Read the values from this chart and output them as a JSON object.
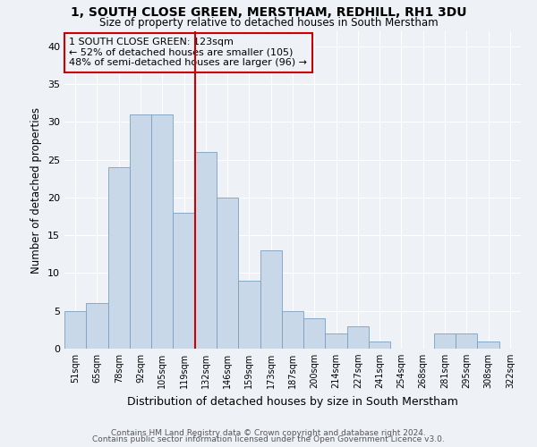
{
  "title1": "1, SOUTH CLOSE GREEN, MERSTHAM, REDHILL, RH1 3DU",
  "title2": "Size of property relative to detached houses in South Merstham",
  "xlabel": "Distribution of detached houses by size in South Merstham",
  "ylabel": "Number of detached properties",
  "categories": [
    "51sqm",
    "65sqm",
    "78sqm",
    "92sqm",
    "105sqm",
    "119sqm",
    "132sqm",
    "146sqm",
    "159sqm",
    "173sqm",
    "187sqm",
    "200sqm",
    "214sqm",
    "227sqm",
    "241sqm",
    "254sqm",
    "268sqm",
    "281sqm",
    "295sqm",
    "308sqm",
    "322sqm"
  ],
  "values": [
    5,
    6,
    24,
    31,
    31,
    18,
    26,
    20,
    9,
    13,
    5,
    4,
    2,
    3,
    1,
    0,
    0,
    2,
    2,
    1,
    0
  ],
  "bar_color": "#c8d8e8",
  "bar_edge_color": "#7aa0c0",
  "vline_x": 5.5,
  "vline_color": "#cc0000",
  "annotation_text": "1 SOUTH CLOSE GREEN: 123sqm\n← 52% of detached houses are smaller (105)\n48% of semi-detached houses are larger (96) →",
  "annotation_box_color": "#cc0000",
  "background_color": "#eef2f7",
  "footer1": "Contains HM Land Registry data © Crown copyright and database right 2024.",
  "footer2": "Contains public sector information licensed under the Open Government Licence v3.0.",
  "ylim": [
    0,
    42
  ],
  "yticks": [
    0,
    5,
    10,
    15,
    20,
    25,
    30,
    35,
    40
  ]
}
